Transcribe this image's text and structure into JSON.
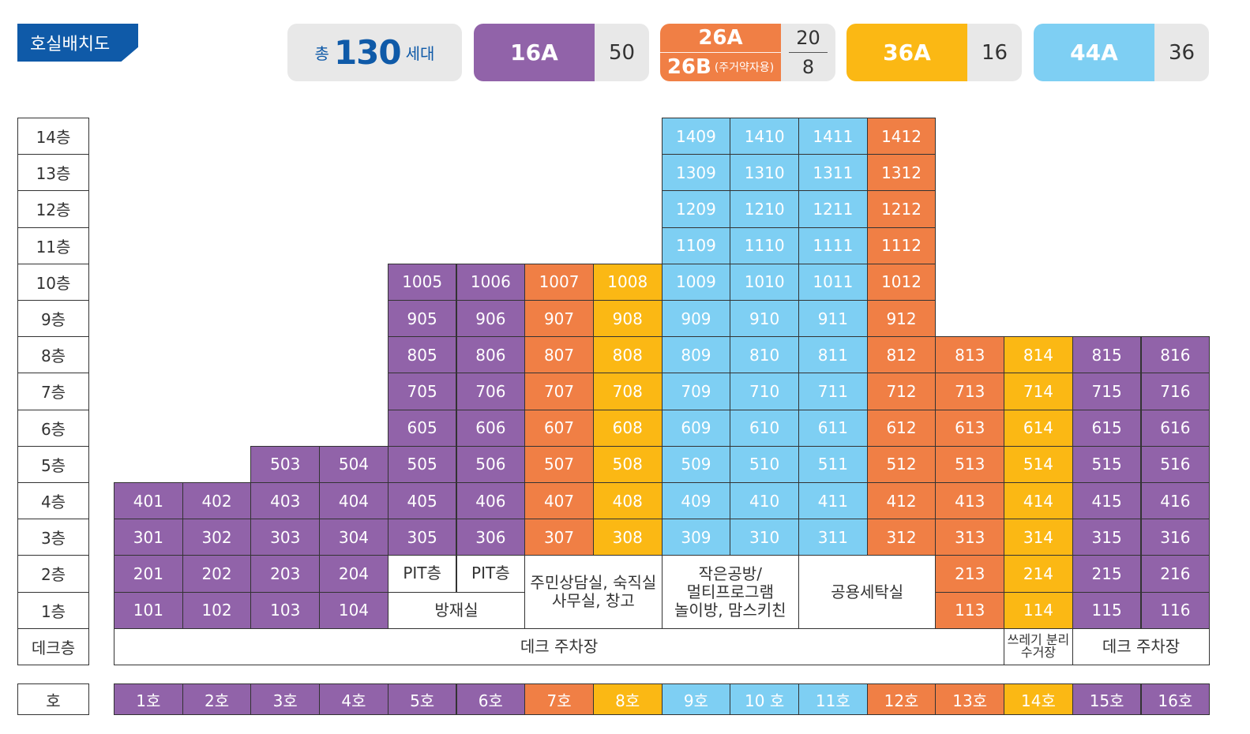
{
  "title": "호실배치도",
  "colors": {
    "16A": "#9163a9",
    "26A": "#f07f45",
    "36A": "#fbb814",
    "44A": "#7ecff3",
    "brand": "#0f5aa8"
  },
  "legend": {
    "total_prefix": "총",
    "total_number": "130",
    "total_suffix": "세대",
    "types": [
      {
        "label": "16A",
        "count": "50"
      },
      {
        "label": "26A",
        "count": "20",
        "label2": "26B",
        "note2": "(주거약자용)",
        "count2": "8"
      },
      {
        "label": "36A",
        "count": "16"
      },
      {
        "label": "44A",
        "count": "36"
      }
    ]
  },
  "floors": [
    "14층",
    "13층",
    "12층",
    "11층",
    "10층",
    "9층",
    "8층",
    "7층",
    "6층",
    "5층",
    "4층",
    "3층",
    "2층",
    "1층",
    "데크층"
  ],
  "ho_header": "호",
  "column_types": [
    "16A",
    "16A",
    "16A",
    "16A",
    "16A",
    "16A",
    "26A",
    "36A",
    "44A",
    "44A",
    "44A",
    "26A",
    "26A",
    "36A",
    "16A",
    "16A"
  ],
  "ho_labels": [
    "1호",
    "2호",
    "3호",
    "4호",
    "5호",
    "6호",
    "7호",
    "8호",
    "9호",
    "10 호",
    "11호",
    "12호",
    "13호",
    "14호",
    "15호",
    "16호"
  ],
  "units": [
    {
      "floor": 14,
      "columns": [
        9,
        10,
        11,
        12
      ]
    },
    {
      "floor": 13,
      "columns": [
        9,
        10,
        11,
        12
      ]
    },
    {
      "floor": 12,
      "columns": [
        9,
        10,
        11,
        12
      ]
    },
    {
      "floor": 11,
      "columns": [
        9,
        10,
        11,
        12
      ]
    },
    {
      "floor": 10,
      "columns": [
        5,
        6,
        7,
        8,
        9,
        10,
        11,
        12
      ]
    },
    {
      "floor": 9,
      "columns": [
        5,
        6,
        7,
        8,
        9,
        10,
        11,
        12
      ]
    },
    {
      "floor": 8,
      "columns": [
        5,
        6,
        7,
        8,
        9,
        10,
        11,
        12,
        13,
        14,
        15,
        16
      ]
    },
    {
      "floor": 7,
      "columns": [
        5,
        6,
        7,
        8,
        9,
        10,
        11,
        12,
        13,
        14,
        15,
        16
      ]
    },
    {
      "floor": 6,
      "columns": [
        5,
        6,
        7,
        8,
        9,
        10,
        11,
        12,
        13,
        14,
        15,
        16
      ]
    },
    {
      "floor": 5,
      "columns": [
        3,
        4,
        5,
        6,
        7,
        8,
        9,
        10,
        11,
        12,
        13,
        14,
        15,
        16
      ]
    },
    {
      "floor": 4,
      "columns": [
        1,
        2,
        3,
        4,
        5,
        6,
        7,
        8,
        9,
        10,
        11,
        12,
        13,
        14,
        15,
        16
      ]
    },
    {
      "floor": 3,
      "columns": [
        1,
        2,
        3,
        4,
        5,
        6,
        7,
        8,
        9,
        10,
        11,
        12,
        13,
        14,
        15,
        16
      ]
    },
    {
      "floor": 2,
      "columns": [
        1,
        2,
        3,
        4,
        13,
        14,
        15,
        16
      ]
    },
    {
      "floor": 1,
      "columns": [
        1,
        2,
        3,
        4,
        13,
        14,
        15,
        16
      ]
    }
  ],
  "facilities": [
    {
      "label": "PIT층",
      "floor_top": 2,
      "floor_bottom": 2,
      "col_start": 5,
      "col_end": 5
    },
    {
      "label": "PIT층",
      "floor_top": 2,
      "floor_bottom": 2,
      "col_start": 6,
      "col_end": 6
    },
    {
      "label": "방재실",
      "floor_top": 1,
      "floor_bottom": 1,
      "col_start": 5,
      "col_end": 6
    },
    {
      "label": "주민상담실, 숙직실\n사무실, 창고",
      "floor_top": 2,
      "floor_bottom": 1,
      "col_start": 7,
      "col_end": 8
    },
    {
      "label": "작은공방/\n멀티프로그램\n놀이방, 맘스키친",
      "floor_top": 2,
      "floor_bottom": 1,
      "col_start": 9,
      "col_end": 10
    },
    {
      "label": "공용세탁실",
      "floor_top": 2,
      "floor_bottom": 1,
      "col_start": 11,
      "col_end": 12
    },
    {
      "label": "데크 주차장",
      "floor_top": 0,
      "floor_bottom": 0,
      "col_start": 1,
      "col_end": 13
    },
    {
      "label": "쓰레기 분리\n수거장",
      "floor_top": 0,
      "floor_bottom": 0,
      "col_start": 14,
      "col_end": 14,
      "small": true
    },
    {
      "label": "데크 주차장",
      "floor_top": 0,
      "floor_bottom": 0,
      "col_start": 15,
      "col_end": 16
    }
  ]
}
